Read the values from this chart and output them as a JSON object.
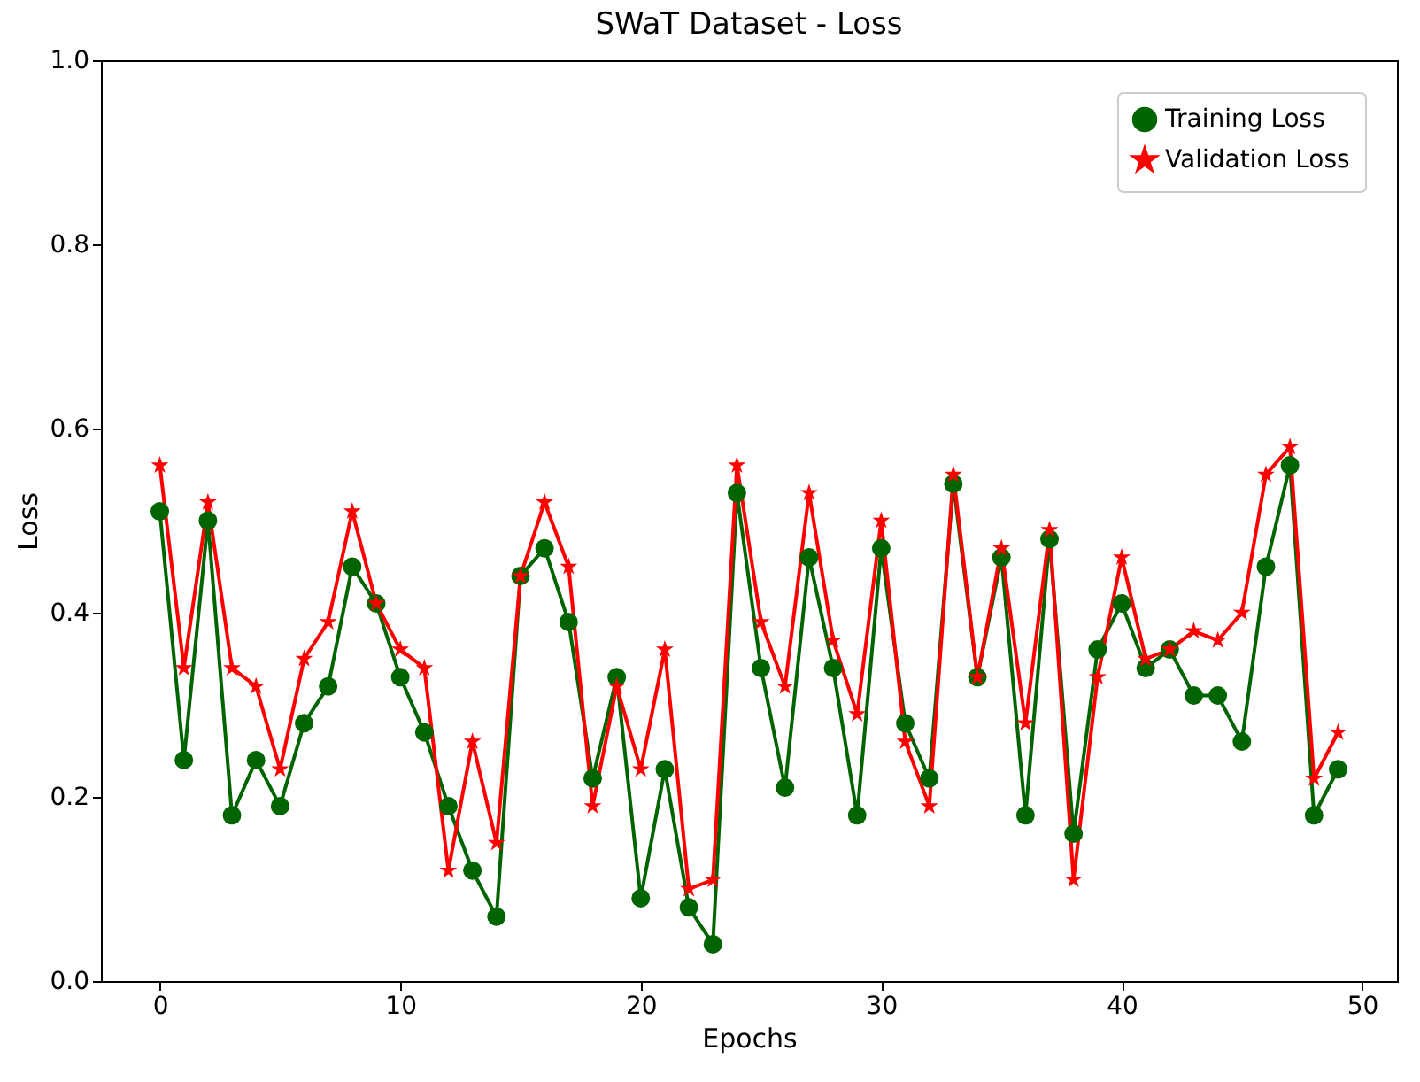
{
  "chart_data": {
    "type": "line",
    "title": "SWaT Dataset - Loss",
    "xlabel": "Epochs",
    "ylabel": "Loss",
    "x": [
      0,
      1,
      2,
      3,
      4,
      5,
      6,
      7,
      8,
      9,
      10,
      11,
      12,
      13,
      14,
      15,
      16,
      17,
      18,
      19,
      20,
      21,
      22,
      23,
      24,
      25,
      26,
      27,
      28,
      29,
      30,
      31,
      32,
      33,
      34,
      35,
      36,
      37,
      38,
      39,
      40,
      41,
      42,
      43,
      44,
      45,
      46,
      47,
      48,
      49
    ],
    "series": [
      {
        "name": "Training Loss",
        "color": "#006400",
        "marker": "circle",
        "values": [
          0.51,
          0.24,
          0.5,
          0.18,
          0.24,
          0.19,
          0.28,
          0.32,
          0.45,
          0.41,
          0.33,
          0.27,
          0.19,
          0.12,
          0.07,
          0.44,
          0.47,
          0.39,
          0.22,
          0.33,
          0.09,
          0.23,
          0.08,
          0.04,
          0.53,
          0.34,
          0.21,
          0.46,
          0.34,
          0.18,
          0.47,
          0.28,
          0.22,
          0.54,
          0.33,
          0.46,
          0.18,
          0.48,
          0.16,
          0.36,
          0.41,
          0.34,
          0.36,
          0.31,
          0.31,
          0.26,
          0.45,
          0.56,
          0.18,
          0.23
        ]
      },
      {
        "name": "Validation Loss",
        "color": "#ff0000",
        "marker": "star",
        "values": [
          0.56,
          0.34,
          0.52,
          0.34,
          0.32,
          0.23,
          0.35,
          0.39,
          0.51,
          0.41,
          0.36,
          0.34,
          0.12,
          0.26,
          0.15,
          0.44,
          0.52,
          0.45,
          0.19,
          0.32,
          0.23,
          0.36,
          0.1,
          0.11,
          0.56,
          0.39,
          0.32,
          0.53,
          0.37,
          0.29,
          0.5,
          0.26,
          0.19,
          0.55,
          0.33,
          0.47,
          0.28,
          0.49,
          0.11,
          0.33,
          0.46,
          0.35,
          0.36,
          0.38,
          0.37,
          0.4,
          0.55,
          0.58,
          0.22,
          0.27
        ]
      }
    ],
    "xlim": [
      -2.45,
      51.45
    ],
    "ylim": [
      0,
      1
    ],
    "xticks": [
      0,
      10,
      20,
      30,
      40,
      50
    ],
    "yticks": [
      {
        "value": 0,
        "label": "0.0"
      },
      0.2,
      0.4,
      0.6,
      0.8,
      {
        "value": 1,
        "label": "1.0"
      }
    ],
    "legend": "top right",
    "line_style": "solid"
  }
}
